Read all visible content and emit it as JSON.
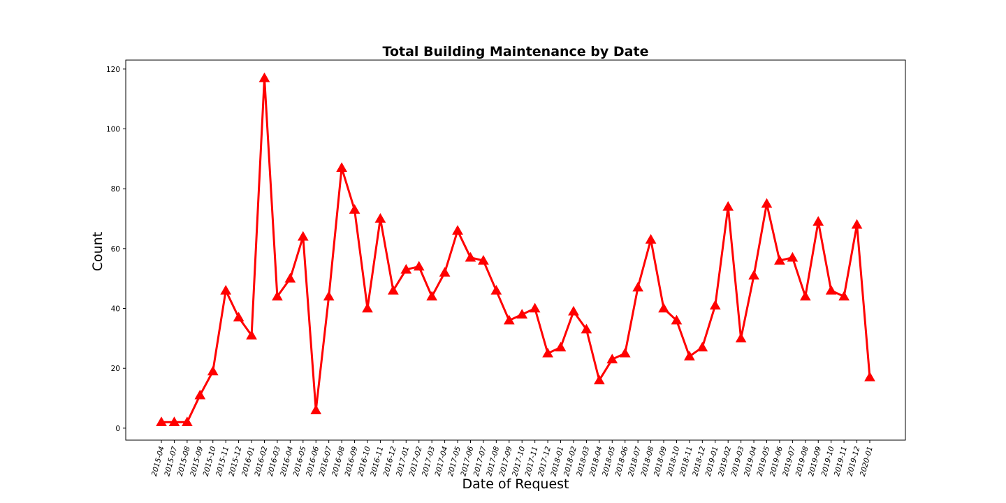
{
  "chart_data": {
    "type": "line",
    "title": "Total Building Maintenance by Date",
    "xlabel": "Date of Request",
    "ylabel": "Count",
    "ylim": [
      -4,
      123
    ],
    "yticks": [
      0,
      20,
      40,
      60,
      80,
      100,
      120
    ],
    "grid": false,
    "legend": "none",
    "color": "#ff0000",
    "marker": "triangle-up",
    "categories": [
      "2015-04",
      "2015-07",
      "2015-08",
      "2015-09",
      "2015-10",
      "2015-11",
      "2015-12",
      "2016-01",
      "2016-02",
      "2016-03",
      "2016-04",
      "2016-05",
      "2016-06",
      "2016-07",
      "2016-08",
      "2016-09",
      "2016-10",
      "2016-11",
      "2016-12",
      "2017-01",
      "2017-02",
      "2017-03",
      "2017-04",
      "2017-05",
      "2017-06",
      "2017-07",
      "2017-08",
      "2017-09",
      "2017-10",
      "2017-11",
      "2017-12",
      "2018-01",
      "2018-02",
      "2018-03",
      "2018-04",
      "2018-05",
      "2018-06",
      "2018-07",
      "2018-08",
      "2018-09",
      "2018-10",
      "2018-11",
      "2018-12",
      "2019-01",
      "2019-02",
      "2019-03",
      "2019-04",
      "2019-05",
      "2019-06",
      "2019-07",
      "2019-08",
      "2019-09",
      "2019-10",
      "2019-11",
      "2019-12",
      "2020-01"
    ],
    "values": [
      2,
      2,
      2,
      11,
      19,
      46,
      37,
      31,
      117,
      44,
      50,
      64,
      6,
      44,
      87,
      73,
      40,
      70,
      46,
      53,
      54,
      44,
      52,
      66,
      57,
      56,
      46,
      36,
      38,
      40,
      25,
      27,
      39,
      33,
      16,
      23,
      25,
      47,
      63,
      40,
      36,
      24,
      27,
      41,
      74,
      30,
      51,
      75,
      56,
      57,
      44,
      69,
      46,
      44,
      68,
      17
    ]
  }
}
